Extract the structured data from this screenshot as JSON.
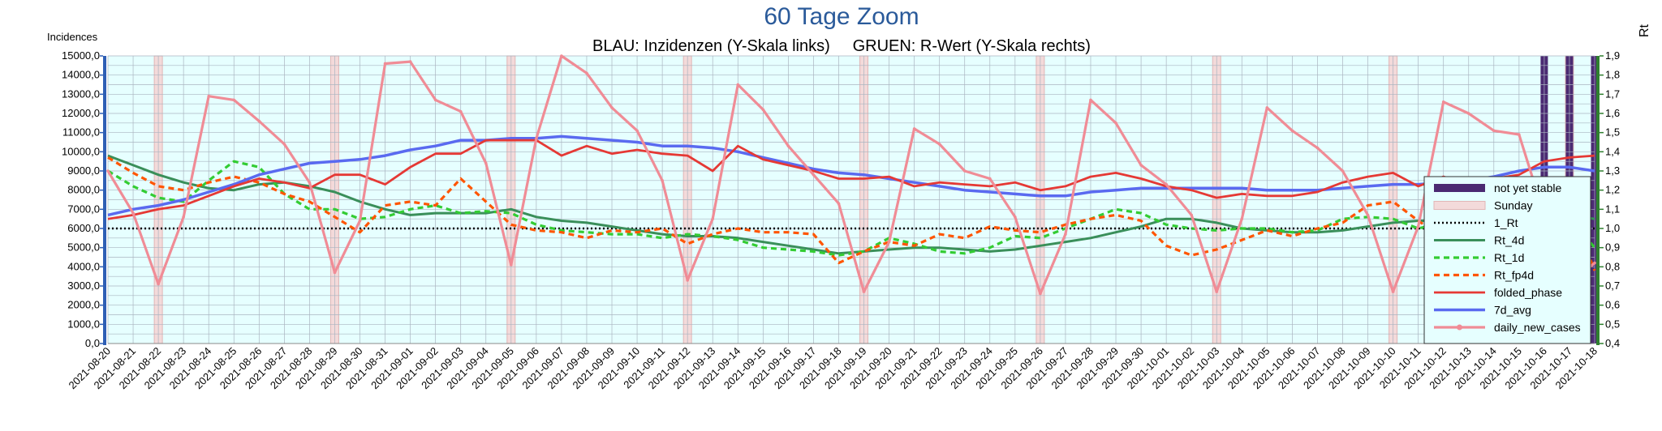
{
  "chart_data": {
    "type": "line",
    "title": "60 Tage Zoom",
    "subtitle": "BLAU: Inzidenzen (Y-Skala links)     GRUEN: R-Wert (Y-Skala rechts)",
    "ylabel_left": "Incidences",
    "ylabel_right": "Rt",
    "ylim_left": [
      0,
      15000
    ],
    "ylim_right": [
      0.4,
      1.9
    ],
    "y_ticks_left": [
      "0,0",
      "1000,0",
      "2000,0",
      "3000,0",
      "4000,0",
      "5000,0",
      "6000,0",
      "7000,0",
      "8000,0",
      "9000,0",
      "10000,0",
      "11000,0",
      "12000,0",
      "13000,0",
      "14000,0",
      "15000,0"
    ],
    "y_ticks_right": [
      "0,4",
      "0,5",
      "0,6",
      "0,7",
      "0,8",
      "0,9",
      "1,0",
      "1,1",
      "1,2",
      "1,3",
      "1,4",
      "1,5",
      "1,6",
      "1,7",
      "1,8",
      "1,9"
    ],
    "grid": true,
    "legend_position": "right",
    "x": [
      "2021-08-20",
      "2021-08-21",
      "2021-08-22",
      "2021-08-23",
      "2021-08-24",
      "2021-08-25",
      "2021-08-26",
      "2021-08-27",
      "2021-08-28",
      "2021-08-29",
      "2021-08-30",
      "2021-08-31",
      "2021-09-01",
      "2021-09-02",
      "2021-09-03",
      "2021-09-04",
      "2021-09-05",
      "2021-09-06",
      "2021-09-07",
      "2021-09-08",
      "2021-09-09",
      "2021-09-10",
      "2021-09-11",
      "2021-09-12",
      "2021-09-13",
      "2021-09-14",
      "2021-09-15",
      "2021-09-16",
      "2021-09-17",
      "2021-09-18",
      "2021-09-19",
      "2021-09-20",
      "2021-09-21",
      "2021-09-22",
      "2021-09-23",
      "2021-09-24",
      "2021-09-25",
      "2021-09-26",
      "2021-09-27",
      "2021-09-28",
      "2021-09-29",
      "2021-09-30",
      "2021-10-01",
      "2021-10-02",
      "2021-10-03",
      "2021-10-04",
      "2021-10-05",
      "2021-10-06",
      "2021-10-07",
      "2021-10-08",
      "2021-10-09",
      "2021-10-10",
      "2021-10-11",
      "2021-10-12",
      "2021-10-13",
      "2021-10-14",
      "2021-10-15",
      "2021-10-16",
      "2021-10-17",
      "2021-10-18"
    ],
    "sundays": [
      "2021-08-22",
      "2021-08-29",
      "2021-09-05",
      "2021-09-12",
      "2021-09-19",
      "2021-09-26",
      "2021-10-03",
      "2021-10-10",
      "2021-10-17"
    ],
    "not_yet_stable": [
      "2021-10-16",
      "2021-10-17",
      "2021-10-18"
    ],
    "colors": {
      "plot_bg": "#e6ffff",
      "grid": "#aab4c0",
      "left_axis": "#2f5fb5",
      "right_axis": "#2f7f2f",
      "title": "#2a5a9a",
      "not_yet_stable": "#4b2a72",
      "sunday_fill": "#f3dada",
      "sunday_edge": "#e2b6b6"
    },
    "legend": [
      {
        "key": "not_yet_stable",
        "label": "not yet stable"
      },
      {
        "key": "sunday",
        "label": "Sunday"
      },
      {
        "key": "one_rt",
        "label": "1_Rt"
      },
      {
        "key": "rt_4d",
        "label": "Rt_4d"
      },
      {
        "key": "rt_1d",
        "label": "Rt_1d"
      },
      {
        "key": "rt_fp4d",
        "label": "Rt_fp4d"
      },
      {
        "key": "folded_phase",
        "label": "folded_phase"
      },
      {
        "key": "avg7d",
        "label": "7d_avg"
      },
      {
        "key": "daily_new_cases",
        "label": "daily_new_cases"
      }
    ],
    "series": [
      {
        "key": "one_rt",
        "name": "1_Rt",
        "axis": "right",
        "color": "#000000",
        "dash": "dot",
        "values": [
          1,
          1,
          1,
          1,
          1,
          1,
          1,
          1,
          1,
          1,
          1,
          1,
          1,
          1,
          1,
          1,
          1,
          1,
          1,
          1,
          1,
          1,
          1,
          1,
          1,
          1,
          1,
          1,
          1,
          1,
          1,
          1,
          1,
          1,
          1,
          1,
          1,
          1,
          1,
          1,
          1,
          1,
          1,
          1,
          1,
          1,
          1,
          1,
          1,
          1,
          1,
          1,
          1,
          1,
          1,
          1,
          1,
          1,
          1,
          1
        ]
      },
      {
        "key": "rt_4d",
        "name": "Rt_4d",
        "axis": "right",
        "color": "#3a8f5a",
        "dash": "solid",
        "values": [
          1.38,
          1.33,
          1.28,
          1.24,
          1.21,
          1.2,
          1.23,
          1.24,
          1.22,
          1.19,
          1.14,
          1.1,
          1.07,
          1.08,
          1.08,
          1.08,
          1.1,
          1.06,
          1.04,
          1.03,
          1.01,
          0.99,
          0.97,
          0.96,
          0.96,
          0.95,
          0.93,
          0.91,
          0.89,
          0.87,
          0.88,
          0.89,
          0.9,
          0.9,
          0.89,
          0.88,
          0.89,
          0.91,
          0.93,
          0.95,
          0.98,
          1.01,
          1.05,
          1.05,
          1.03,
          1.0,
          0.99,
          0.98,
          0.98,
          0.99,
          1.01,
          1.03,
          1.04,
          1.04,
          1.03,
          1.03,
          1.05,
          1.06,
          1.07,
          1.05
        ]
      },
      {
        "key": "rt_1d",
        "name": "Rt_1d",
        "axis": "right",
        "color": "#33cc33",
        "dash": "dash",
        "values": [
          1.3,
          1.22,
          1.16,
          1.14,
          1.25,
          1.35,
          1.32,
          1.18,
          1.1,
          1.1,
          1.05,
          1.06,
          1.1,
          1.12,
          1.08,
          1.09,
          1.08,
          1.02,
          0.99,
          0.98,
          0.97,
          0.97,
          0.95,
          0.97,
          0.96,
          0.94,
          0.9,
          0.89,
          0.88,
          0.86,
          0.88,
          0.95,
          0.92,
          0.88,
          0.87,
          0.9,
          0.96,
          0.95,
          1.0,
          1.05,
          1.1,
          1.08,
          1.02,
          1.0,
          0.99,
          1.0,
          1.0,
          0.98,
          0.99,
          1.05,
          1.06,
          1.05,
          1.0,
          1.03,
          1.05,
          1.06,
          1.08,
          1.1,
          1.06,
          0.9
        ]
      },
      {
        "key": "rt_fp4d",
        "name": "Rt_fp4d",
        "axis": "right",
        "color": "#ff5500",
        "dash": "dash",
        "values": [
          1.37,
          1.29,
          1.22,
          1.2,
          1.24,
          1.27,
          1.24,
          1.18,
          1.14,
          1.06,
          0.98,
          1.12,
          1.14,
          1.12,
          1.26,
          1.14,
          1.02,
          0.99,
          0.98,
          0.95,
          0.99,
          0.98,
          1.0,
          0.92,
          0.97,
          1.0,
          0.98,
          0.98,
          0.97,
          0.82,
          0.88,
          0.93,
          0.91,
          0.97,
          0.95,
          1.01,
          0.99,
          0.98,
          1.02,
          1.05,
          1.07,
          1.04,
          0.91,
          0.86,
          0.89,
          0.94,
          0.99,
          0.96,
          1.0,
          1.03,
          1.12,
          1.14,
          1.04,
          0.95,
          0.98,
          1.06,
          1.09,
          1.15,
          1.12,
          0.78
        ]
      },
      {
        "key": "avg7d",
        "name": "7d_avg",
        "axis": "left",
        "color": "#5a6af0",
        "dash": "solid",
        "values": [
          6700,
          7000,
          7200,
          7500,
          7900,
          8300,
          8800,
          9100,
          9400,
          9500,
          9600,
          9800,
          10100,
          10300,
          10600,
          10600,
          10700,
          10700,
          10800,
          10700,
          10600,
          10500,
          10300,
          10300,
          10200,
          10000,
          9700,
          9400,
          9100,
          8900,
          8800,
          8600,
          8400,
          8200,
          8000,
          7900,
          7800,
          7700,
          7700,
          7900,
          8000,
          8100,
          8100,
          8100,
          8100,
          8100,
          8000,
          8000,
          8000,
          8100,
          8200,
          8300,
          8300,
          8400,
          8500,
          8700,
          9000,
          9200,
          9200,
          9000
        ]
      },
      {
        "key": "folded_phase",
        "name": "folded_phase",
        "axis": "left",
        "color": "#e53935",
        "dash": "solid",
        "values": [
          6500,
          6700,
          7000,
          7200,
          7700,
          8200,
          8600,
          8400,
          8100,
          8800,
          8800,
          8300,
          9200,
          9900,
          9900,
          10600,
          10600,
          10600,
          9800,
          10300,
          9900,
          10100,
          9900,
          9800,
          9000,
          10300,
          9600,
          9300,
          9000,
          8600,
          8600,
          8700,
          8200,
          8400,
          8300,
          8200,
          8400,
          8000,
          8200,
          8700,
          8900,
          8600,
          8200,
          8000,
          7600,
          7800,
          7700,
          7700,
          7900,
          8400,
          8700,
          8900,
          8200,
          8700,
          8300,
          8600,
          8800,
          9500,
          9700,
          9800
        ]
      },
      {
        "key": "daily_new_cases",
        "name": "daily_new_cases",
        "axis": "left",
        "color": "#f08c96",
        "dash": "solid",
        "values": [
          9000,
          6800,
          3100,
          6600,
          12900,
          12700,
          11600,
          10400,
          8400,
          3700,
          6400,
          14600,
          14700,
          12700,
          12100,
          9400,
          4100,
          10700,
          15000,
          14100,
          12300,
          11100,
          8500,
          3300,
          6500,
          13500,
          12200,
          10300,
          8800,
          7300,
          2700,
          5300,
          11200,
          10400,
          9000,
          8600,
          6600,
          2600,
          5700,
          12700,
          11500,
          9300,
          8300,
          6700,
          2700,
          6500,
          12300,
          11100,
          10200,
          9000,
          6700,
          2700,
          6100,
          12600,
          12000,
          11100,
          10900,
          6700,
          3100,
          4200
        ]
      }
    ]
  }
}
